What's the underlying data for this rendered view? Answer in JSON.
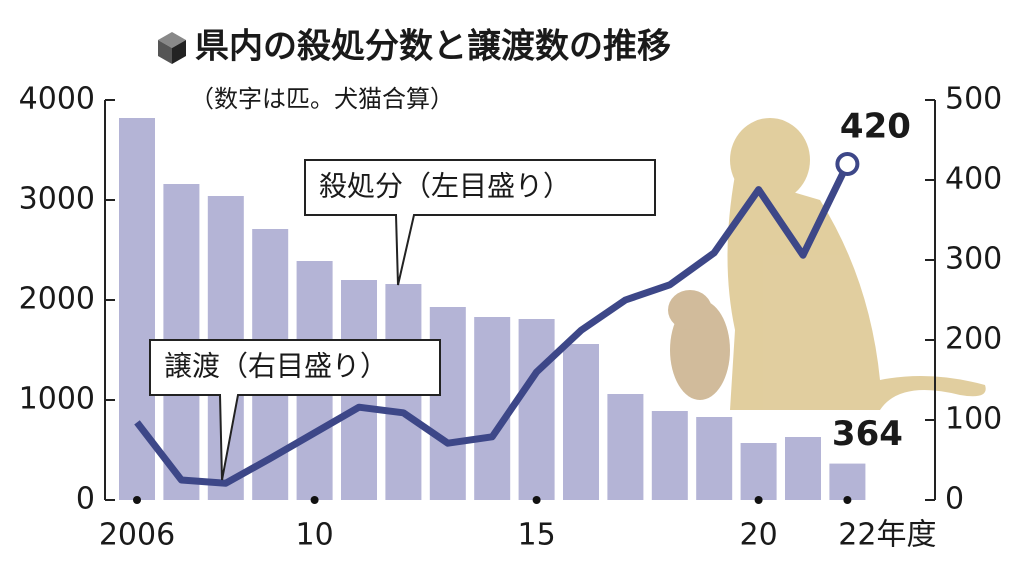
{
  "chart_data": {
    "type": "bar",
    "title": "県内の殺処分数と譲渡数の推移",
    "subtitle": "（数字は匹。犬猫合算）",
    "categories": [
      "2006",
      null,
      null,
      null,
      "10",
      null,
      null,
      null,
      null,
      "15",
      null,
      null,
      null,
      null,
      "20",
      null,
      "22年度"
    ],
    "series": [
      {
        "name": "殺処分（左目盛り）",
        "type": "bar",
        "color": "#b4b4d6",
        "values": [
          3820,
          3160,
          3040,
          2710,
          2390,
          2200,
          2160,
          1930,
          1830,
          1810,
          1560,
          1060,
          890,
          830,
          570,
          630,
          364
        ]
      },
      {
        "name": "譲渡（右目盛り）",
        "type": "line",
        "axis": "y2",
        "color": "#3d4788",
        "values": [
          97,
          25,
          21,
          52,
          84,
          116,
          109,
          71,
          79,
          160,
          212,
          250,
          269,
          309,
          388,
          306,
          420
        ]
      }
    ],
    "ylim": [
      0,
      4000
    ],
    "yticks": [
      0,
      1000,
      2000,
      3000,
      4000
    ],
    "y2lim": [
      0,
      500
    ],
    "y2ticks": [
      0,
      100,
      200,
      300,
      400,
      500
    ]
  }
}
